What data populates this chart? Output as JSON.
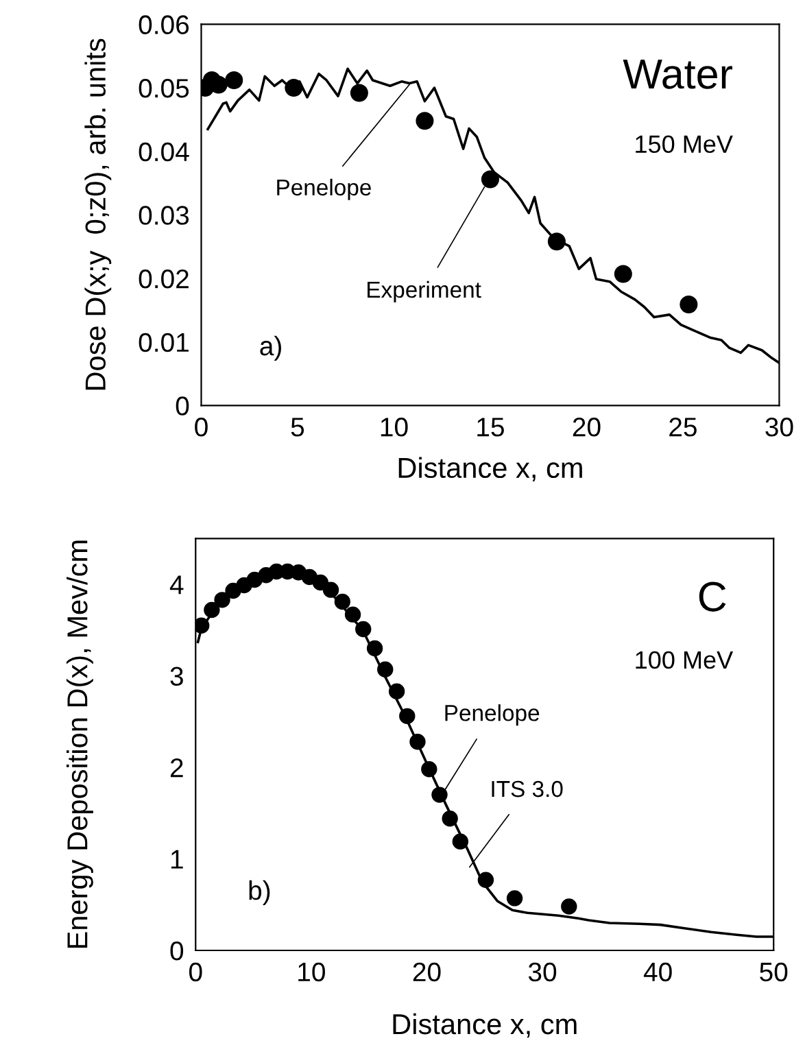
{
  "chart_data": [
    {
      "type": "line",
      "xlabel": "Distance x, cm",
      "ylabel": "Dose D(x;y  0;z0), arb. units",
      "xlim": [
        0,
        30
      ],
      "xticks": [
        0,
        5,
        10,
        15,
        20,
        25,
        30
      ],
      "ylim": [
        0,
        0.06
      ],
      "yticks": [
        0,
        0.01,
        0.02,
        0.03,
        0.04,
        0.05,
        0.06
      ],
      "grid": false,
      "legend": false,
      "series": [
        {
          "color": "#000000",
          "marker": "none",
          "line_style": "solid",
          "x": [
            0.34,
            1.13,
            1.3,
            1.5,
            1.9,
            2.5,
            3.0,
            3.3,
            3.8,
            4.2,
            4.8,
            5.1,
            5.5,
            6.1,
            6.5,
            7.1,
            7.6,
            8.1,
            8.6,
            8.9,
            9.8,
            10.4,
            10.8,
            11.2,
            11.6,
            12.1,
            12.7,
            13.1,
            13.6,
            13.9,
            14.3,
            14.7,
            15.2,
            15.9,
            16.6,
            17.0,
            17.3,
            17.6,
            18.3,
            19.1,
            19.6,
            20.2,
            20.5,
            21.2,
            21.8,
            22.5,
            23.0,
            23.5,
            24.3,
            24.9,
            25.5,
            26.4,
            27.0,
            27.4,
            28.0,
            28.4,
            29.1,
            29.6,
            30.0
          ],
          "values": [
            0.0435,
            0.0475,
            0.0477,
            0.0463,
            0.048,
            0.0497,
            0.048,
            0.0518,
            0.0503,
            0.0512,
            0.0495,
            0.051,
            0.0485,
            0.0522,
            0.0512,
            0.0487,
            0.053,
            0.0507,
            0.0527,
            0.0512,
            0.0503,
            0.051,
            0.0507,
            0.051,
            0.0479,
            0.05,
            0.0455,
            0.0451,
            0.0404,
            0.0436,
            0.0423,
            0.039,
            0.0367,
            0.0351,
            0.0323,
            0.0303,
            0.0328,
            0.0287,
            0.0263,
            0.0251,
            0.0215,
            0.0232,
            0.0199,
            0.0195,
            0.0179,
            0.0167,
            0.0155,
            0.0139,
            0.0143,
            0.0127,
            0.0119,
            0.0107,
            0.0103,
            0.0091,
            0.0083,
            0.0095,
            0.0087,
            0.0075,
            0.0067
          ]
        },
        {
          "type": "scatter",
          "color": "#000000",
          "marker": "circle",
          "x": [
            0.2,
            0.55,
            0.9,
            1.7,
            4.8,
            8.2,
            11.6,
            15.0,
            18.45,
            21.9,
            25.3
          ],
          "values": [
            0.05,
            0.0512,
            0.0505,
            0.0512,
            0.05,
            0.0492,
            0.0448,
            0.0356,
            0.0258,
            0.0207,
            0.0159
          ]
        }
      ],
      "annotations": [
        "Water",
        "150 MeV",
        "a)",
        {
          "text": "Penelope",
          "x": 10.8,
          "y": 0.0505
        },
        {
          "text": "Experiment",
          "x": 14.7,
          "y": 0.0344
        }
      ]
    },
    {
      "type": "line",
      "xlabel": "Distance x, cm",
      "ylabel": "Energy Deposition D(x), Mev/cm",
      "xlim": [
        0,
        50
      ],
      "xticks": [
        0,
        10,
        20,
        30,
        40,
        50
      ],
      "ylim": [
        0,
        4.5
      ],
      "yticks": [
        0,
        1,
        2,
        3,
        4
      ],
      "grid": false,
      "legend": false,
      "series": [
        {
          "color": "#000000",
          "marker": "none",
          "line_style": "solid",
          "x": [
            0.2,
            0.5,
            1.5,
            2.3,
            3.3,
            4.2,
            5.1,
            6.1,
            7.0,
            8.0,
            8.9,
            9.9,
            11.2,
            12.9,
            14.5,
            16.4,
            18.2,
            19.9,
            21.7,
            23.5,
            24.8,
            26.1,
            27.4,
            28.7,
            31.4,
            33.1,
            34.0,
            35.8,
            38.4,
            40.2,
            42.4,
            44.6,
            46.8,
            48.5,
            50.0
          ],
          "values": [
            3.37,
            3.52,
            3.7,
            3.82,
            3.92,
            3.98,
            4.04,
            4.09,
            4.13,
            4.14,
            4.12,
            4.07,
            3.98,
            3.73,
            3.49,
            2.99,
            2.54,
            2.07,
            1.58,
            1.11,
            0.75,
            0.54,
            0.44,
            0.41,
            0.38,
            0.35,
            0.33,
            0.3,
            0.29,
            0.28,
            0.24,
            0.2,
            0.17,
            0.15,
            0.15
          ]
        },
        {
          "type": "scatter",
          "color": "#000000",
          "marker": "circle",
          "x": [
            0.5,
            1.4,
            2.3,
            3.25,
            4.2,
            5.1,
            6.1,
            7.0,
            7.95,
            8.9,
            9.85,
            10.8,
            11.7,
            12.7,
            13.6,
            14.5,
            15.5,
            16.4,
            17.4,
            18.3,
            19.2,
            20.2,
            21.1,
            22.0,
            22.9,
            25.1,
            27.6,
            32.3
          ],
          "values": [
            3.55,
            3.72,
            3.83,
            3.93,
            3.99,
            4.05,
            4.1,
            4.14,
            4.14,
            4.13,
            4.08,
            4.02,
            3.94,
            3.81,
            3.67,
            3.51,
            3.3,
            3.07,
            2.83,
            2.56,
            2.28,
            1.98,
            1.7,
            1.44,
            1.19,
            0.77,
            0.57,
            0.48
          ]
        }
      ],
      "annotations": [
        "C",
        "100 MeV",
        "b)",
        {
          "text": "Penelope",
          "x": 21.5,
          "y": 1.74
        },
        {
          "text": "ITS 3.0",
          "x": 23.7,
          "y": 0.91
        }
      ]
    }
  ]
}
